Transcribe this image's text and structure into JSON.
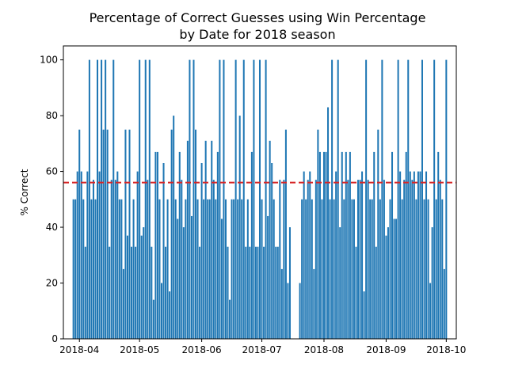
{
  "chart_data": {
    "type": "bar",
    "title_lines": [
      "Percentage of Correct Guesses using Win Percentage",
      "by Date for 2018 season"
    ],
    "xlabel": "",
    "ylabel": "% Correct",
    "ylim": [
      0,
      105
    ],
    "xlim": [
      "2018-03-24",
      "2018-10-06"
    ],
    "grid": false,
    "bar_color": "#1f77b4",
    "reference_line": {
      "value": 56,
      "color": "#d62728",
      "style": "dashed"
    },
    "x_ticks": [
      "2018-04",
      "2018-05",
      "2018-06",
      "2018-07",
      "2018-08",
      "2018-09",
      "2018-10"
    ],
    "y_ticks": [
      0,
      20,
      40,
      60,
      80,
      100
    ],
    "dates": [
      "2018-03-29",
      "2018-03-30",
      "2018-03-31",
      "2018-04-01",
      "2018-04-02",
      "2018-04-03",
      "2018-04-04",
      "2018-04-05",
      "2018-04-06",
      "2018-04-07",
      "2018-04-08",
      "2018-04-09",
      "2018-04-10",
      "2018-04-11",
      "2018-04-12",
      "2018-04-13",
      "2018-04-14",
      "2018-04-15",
      "2018-04-16",
      "2018-04-17",
      "2018-04-18",
      "2018-04-19",
      "2018-04-20",
      "2018-04-21",
      "2018-04-22",
      "2018-04-23",
      "2018-04-24",
      "2018-04-25",
      "2018-04-26",
      "2018-04-27",
      "2018-04-28",
      "2018-04-29",
      "2018-04-30",
      "2018-05-01",
      "2018-05-02",
      "2018-05-03",
      "2018-05-04",
      "2018-05-05",
      "2018-05-06",
      "2018-05-07",
      "2018-05-08",
      "2018-05-09",
      "2018-05-10",
      "2018-05-11",
      "2018-05-12",
      "2018-05-13",
      "2018-05-14",
      "2018-05-15",
      "2018-05-16",
      "2018-05-17",
      "2018-05-18",
      "2018-05-19",
      "2018-05-20",
      "2018-05-21",
      "2018-05-22",
      "2018-05-23",
      "2018-05-24",
      "2018-05-25",
      "2018-05-26",
      "2018-05-27",
      "2018-05-28",
      "2018-05-29",
      "2018-05-30",
      "2018-05-31",
      "2018-06-01",
      "2018-06-02",
      "2018-06-03",
      "2018-06-04",
      "2018-06-05",
      "2018-06-06",
      "2018-06-07",
      "2018-06-08",
      "2018-06-09",
      "2018-06-10",
      "2018-06-11",
      "2018-06-12",
      "2018-06-13",
      "2018-06-14",
      "2018-06-15",
      "2018-06-16",
      "2018-06-17",
      "2018-06-18",
      "2018-06-19",
      "2018-06-20",
      "2018-06-21",
      "2018-06-22",
      "2018-06-23",
      "2018-06-24",
      "2018-06-25",
      "2018-06-26",
      "2018-06-27",
      "2018-06-28",
      "2018-06-29",
      "2018-06-30",
      "2018-07-01",
      "2018-07-02",
      "2018-07-03",
      "2018-07-04",
      "2018-07-05",
      "2018-07-06",
      "2018-07-07",
      "2018-07-08",
      "2018-07-09",
      "2018-07-10",
      "2018-07-11",
      "2018-07-12",
      "2018-07-13",
      "2018-07-14",
      "2018-07-15",
      "2018-07-20",
      "2018-07-21",
      "2018-07-22",
      "2018-07-23",
      "2018-07-24",
      "2018-07-25",
      "2018-07-26",
      "2018-07-27",
      "2018-07-28",
      "2018-07-29",
      "2018-07-30",
      "2018-07-31",
      "2018-08-01",
      "2018-08-02",
      "2018-08-03",
      "2018-08-04",
      "2018-08-05",
      "2018-08-06",
      "2018-08-07",
      "2018-08-08",
      "2018-08-09",
      "2018-08-10",
      "2018-08-11",
      "2018-08-12",
      "2018-08-13",
      "2018-08-14",
      "2018-08-15",
      "2018-08-16",
      "2018-08-17",
      "2018-08-18",
      "2018-08-19",
      "2018-08-20",
      "2018-08-21",
      "2018-08-22",
      "2018-08-23",
      "2018-08-24",
      "2018-08-25",
      "2018-08-26",
      "2018-08-27",
      "2018-08-28",
      "2018-08-29",
      "2018-08-30",
      "2018-08-31",
      "2018-09-01",
      "2018-09-02",
      "2018-09-03",
      "2018-09-04",
      "2018-09-05",
      "2018-09-06",
      "2018-09-07",
      "2018-09-08",
      "2018-09-09",
      "2018-09-10",
      "2018-09-11",
      "2018-09-12",
      "2018-09-13",
      "2018-09-14",
      "2018-09-15",
      "2018-09-16",
      "2018-09-17",
      "2018-09-18",
      "2018-09-19",
      "2018-09-20",
      "2018-09-21",
      "2018-09-22",
      "2018-09-23",
      "2018-09-24",
      "2018-09-25",
      "2018-09-26",
      "2018-09-27",
      "2018-09-28",
      "2018-09-29",
      "2018-09-30"
    ],
    "values": [
      50,
      50,
      60,
      75,
      60,
      50,
      33,
      60,
      100,
      50,
      57,
      50,
      100,
      60,
      100,
      75,
      100,
      75,
      33,
      57,
      100,
      57,
      60,
      50,
      50,
      25,
      75,
      37,
      75,
      33,
      50,
      33,
      60,
      100,
      37,
      40,
      100,
      57,
      100,
      33,
      14,
      67,
      67,
      50,
      20,
      63,
      33,
      50,
      17,
      75,
      80,
      50,
      43,
      67,
      57,
      40,
      50,
      71,
      100,
      44,
      100,
      75,
      50,
      33,
      63,
      50,
      71,
      50,
      50,
      71,
      57,
      50,
      67,
      100,
      43,
      100,
      50,
      33,
      14,
      50,
      50,
      100,
      50,
      80,
      50,
      100,
      33,
      50,
      33,
      67,
      100,
      33,
      33,
      100,
      50,
      33,
      100,
      44,
      71,
      63,
      50,
      33,
      33,
      57,
      25,
      57,
      75,
      20,
      40,
      20,
      50,
      60,
      50,
      57,
      60,
      50,
      25,
      57,
      75,
      67,
      50,
      67,
      67,
      83,
      50,
      100,
      50,
      60,
      100,
      40,
      67,
      50,
      67,
      57,
      67,
      50,
      50,
      33,
      57,
      57,
      60,
      17,
      100,
      57,
      50,
      50,
      67,
      33,
      75,
      50,
      100,
      57,
      37,
      40,
      50,
      67,
      43,
      43,
      100,
      60,
      50,
      57,
      67,
      100,
      60,
      57,
      60,
      50,
      60,
      60,
      100,
      50,
      60,
      50,
      20,
      40,
      100,
      50,
      67,
      57,
      50,
      25
    ],
    "extra_dates": [
      "2018-10-01"
    ],
    "extra_values": [
      100
    ]
  }
}
